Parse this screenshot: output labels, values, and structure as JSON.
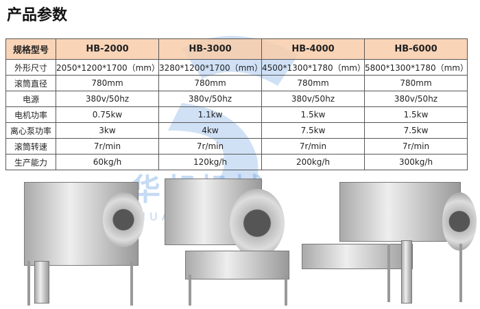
{
  "title": "产品参数",
  "watermark": {
    "text": "华邦机械",
    "sub": "HUABANGJIXIE"
  },
  "table": {
    "headers": [
      "规格型号",
      "HB-2000",
      "HB-3000",
      "HB-4000",
      "HB-6000"
    ],
    "rows": [
      [
        "外形尺寸",
        "2050*1200*1700（mm）",
        "3280*1200*1700（mm）",
        "4500*1300*1780（mm）",
        "5800*1300*1780（mm）"
      ],
      [
        "滚筒直径",
        "780mm",
        "780mm",
        "780mm",
        "780mm"
      ],
      [
        "电源",
        "380v/50hz",
        "380v/50hz",
        "380v/50hz",
        "380v/50hz"
      ],
      [
        "电机功率",
        "0.75kw",
        "1.1kw",
        "1.5kw",
        "1.5kw"
      ],
      [
        "离心泵功率",
        "3kw",
        "4kw",
        "7.5kw",
        "7.5kw"
      ],
      [
        "滚筒转速",
        "7r/min",
        "7r/min",
        "7r/min",
        "7r/min"
      ],
      [
        "生产能力",
        "60kg/h",
        "120kg/h",
        "200kg/h",
        "300kg/h"
      ]
    ]
  }
}
